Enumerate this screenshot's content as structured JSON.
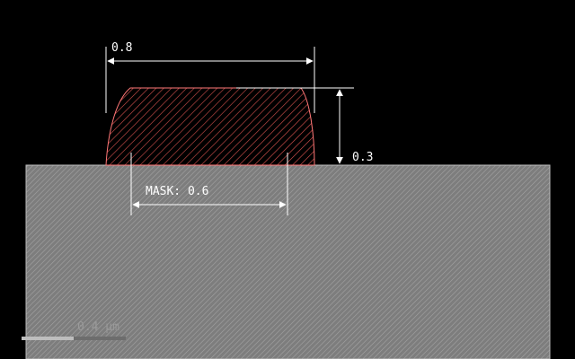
{
  "diagram": {
    "dimensions": {
      "top_width": "0.8",
      "height": "0.3",
      "mask_width": "MASK: 0.6"
    },
    "scale_bar": {
      "label": "0.4 µm"
    },
    "colors": {
      "background": "#000000",
      "substrate": "#8c8c8c",
      "feature_outline": "#ff6666",
      "dimension_lines": "#ffffff"
    }
  }
}
